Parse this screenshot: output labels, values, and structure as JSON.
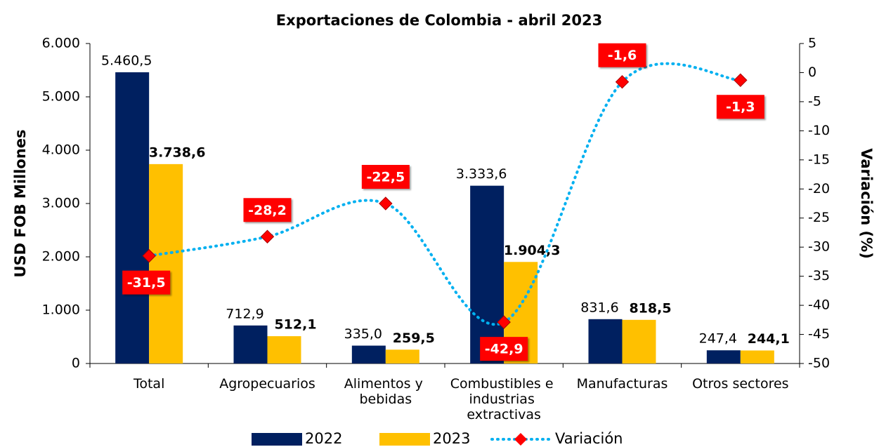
{
  "chart_data": {
    "type": "bar",
    "title": "Exportaciones de Colombia - abril 2023",
    "y_label": "USD FOB Millones",
    "y2_label": "Variación (%)",
    "categories": [
      "Total",
      "Agropecuarios",
      "Alimentos y bebidas",
      "Combustibles e industrias extractivas",
      "Manufacturas",
      "Otros sectores"
    ],
    "ylim": [
      0,
      6000
    ],
    "yticks": [
      0,
      {
        "value": 1000,
        "label": "1.000"
      },
      {
        "value": 2000,
        "label": "2.000"
      },
      {
        "value": 3000,
        "label": "3.000"
      },
      {
        "value": 4000,
        "label": "4.000"
      },
      {
        "value": 5000,
        "label": "5.000"
      },
      {
        "value": 6000,
        "label": "6.000"
      }
    ],
    "y2lim": [
      -50,
      5
    ],
    "y2ticks": [
      5,
      0,
      -5,
      -10,
      -15,
      -20,
      -25,
      -30,
      -35,
      -40,
      -45,
      -50
    ],
    "series": [
      {
        "name": "2022",
        "color": "#002060",
        "values": [
          5460.5,
          712.9,
          335.0,
          3333.6,
          831.6,
          247.4
        ],
        "value_labels": [
          "5.460,5",
          "712,9",
          "335,0",
          "3.333,6",
          "831,6",
          "247,4"
        ]
      },
      {
        "name": "2023",
        "color": "#ffc000",
        "values": [
          3738.6,
          512.1,
          259.5,
          1904.3,
          818.5,
          244.1
        ],
        "value_labels": [
          "3.738,6",
          "512,1",
          "259,5",
          "1.904,3",
          "818,5",
          "244,1"
        ]
      },
      {
        "name": "Variación",
        "type": "line",
        "axis": "y2",
        "color": "#00b0f0",
        "marker_color": "#ff0000",
        "values": [
          -31.5,
          -28.2,
          -22.5,
          -42.9,
          -1.6,
          -1.3
        ],
        "value_labels": [
          "-31,5",
          "-28,2",
          "-22,5",
          "-42,9",
          "-1,6",
          "-1,3"
        ]
      }
    ]
  }
}
